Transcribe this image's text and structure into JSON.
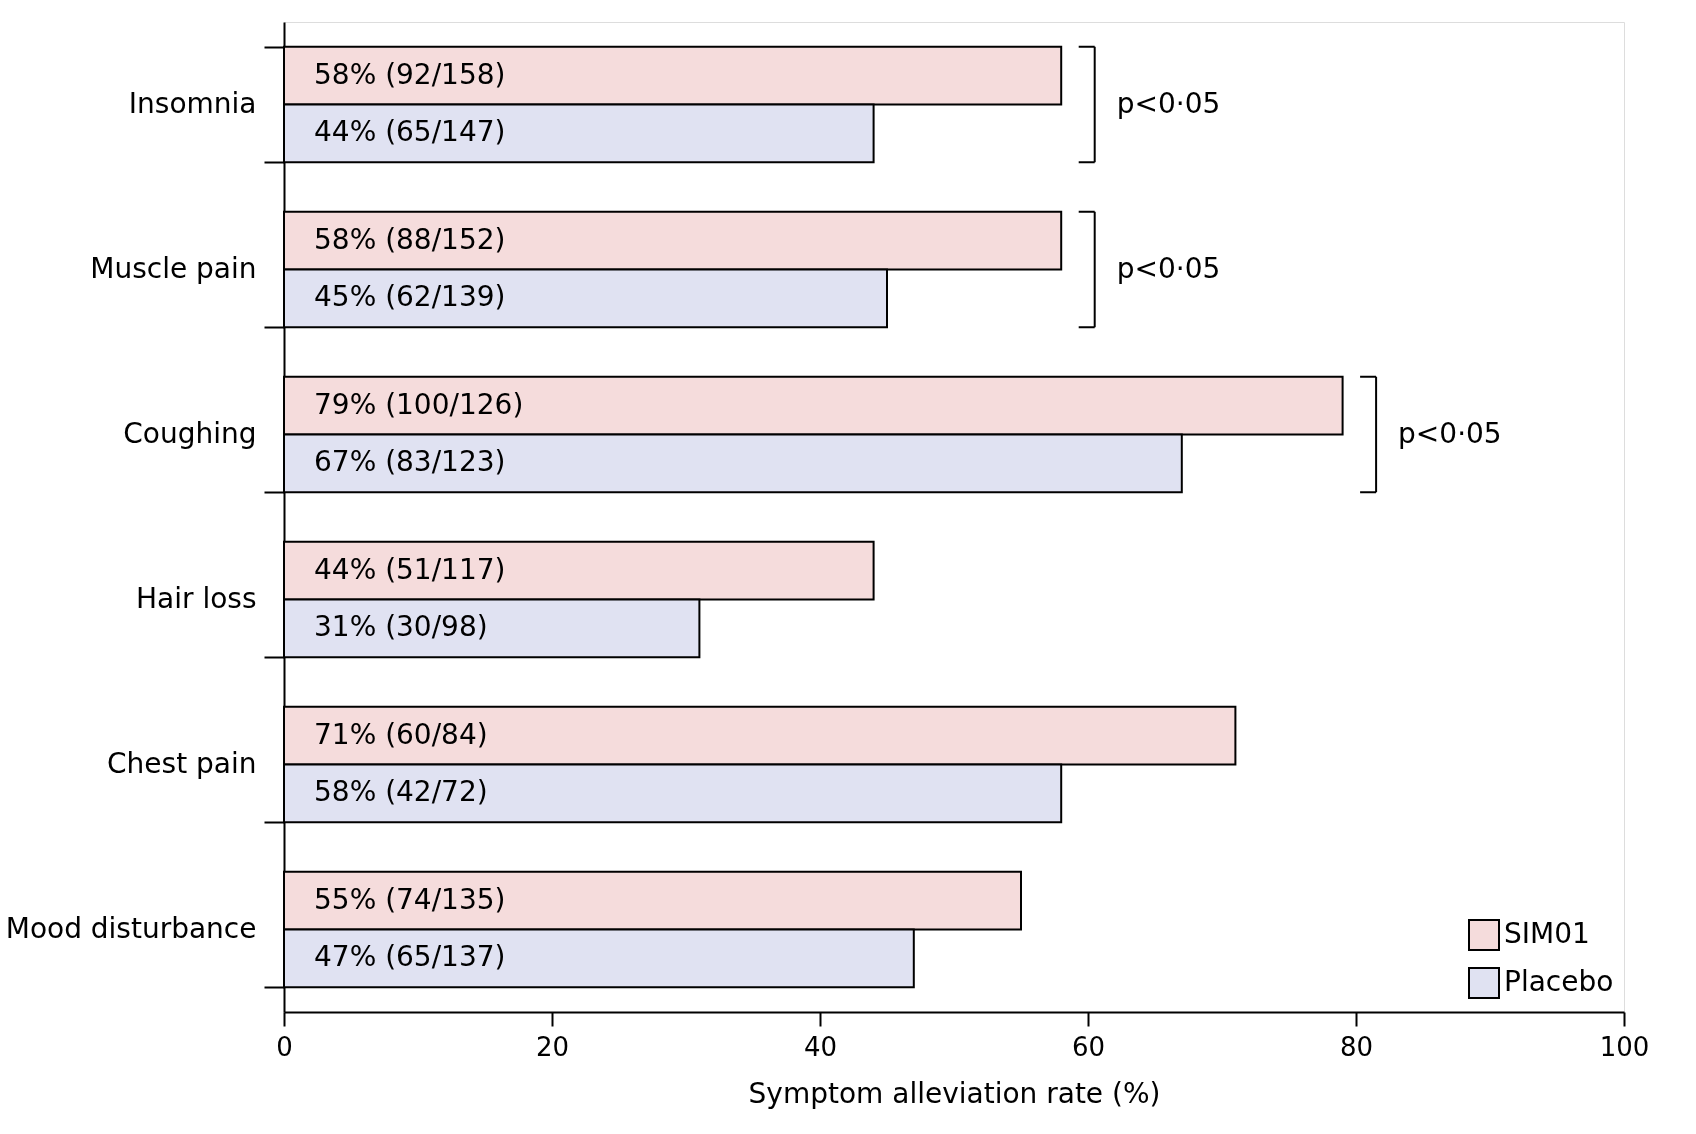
{
  "chart_data": {
    "type": "bar",
    "orientation": "horizontal",
    "categories": [
      "Insomnia",
      "Muscle pain",
      "Coughing",
      "Hair loss",
      "Chest pain",
      "Mood disturbance"
    ],
    "series": [
      {
        "name": "SIM01",
        "color": "#f5dcdc",
        "values": [
          58,
          58,
          79,
          44,
          71,
          55
        ],
        "value_labels": [
          "58% (92/158)",
          "58% (88/152)",
          "79% (100/126)",
          "44% (51/117)",
          "71% (60/84)",
          "55% (74/135)"
        ]
      },
      {
        "name": "Placebo",
        "color": "#e0e2f2",
        "values": [
          44,
          45,
          67,
          31,
          58,
          47
        ],
        "value_labels": [
          "44% (65/147)",
          "45% (62/139)",
          "67% (83/123)",
          "31% (30/98)",
          "58% (42/72)",
          "47% (65/137)"
        ]
      }
    ],
    "xlim": [
      0,
      100
    ],
    "xticks": [
      0,
      20,
      40,
      60,
      80,
      100
    ],
    "xlabel": "Symptom alleviation rate (%)",
    "annotations": [
      "p<0·05",
      "p<0·05",
      "p<0·05"
    ],
    "grid": false,
    "legend": "bottom right"
  }
}
